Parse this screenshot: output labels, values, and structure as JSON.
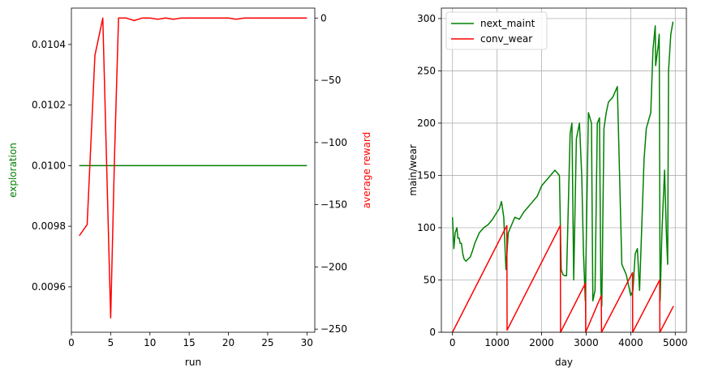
{
  "chart_data": [
    {
      "type": "line",
      "xlabel": "run",
      "ylabel_left": "exploration",
      "ylabel_right": "average reward",
      "xlim": [
        0,
        31
      ],
      "ylim_left": [
        0.00945,
        0.01052
      ],
      "ylim_right": [
        -252.5,
        8
      ],
      "grid": false,
      "legend": "none",
      "x_ticks": [
        0,
        5,
        10,
        15,
        20,
        25,
        30
      ],
      "y_left_ticks": [
        0.0096,
        0.0098,
        0.01,
        0.0102,
        0.0104
      ],
      "y_left_tick_labels": [
        "0.0096",
        "0.0098",
        "0.0100",
        "0.0102",
        "0.0104"
      ],
      "y_right_ticks": [
        -250,
        -200,
        -150,
        -100,
        -50,
        0
      ],
      "y_right_tick_labels": [
        "−250",
        "−200",
        "−150",
        "−100",
        "−50",
        "0"
      ],
      "series": [
        {
          "axis": "left",
          "color": "#008000",
          "x": [
            1,
            30
          ],
          "y": [
            0.01,
            0.01
          ]
        },
        {
          "axis": "right",
          "color": "#ff0000",
          "x": [
            1,
            2,
            3,
            4,
            5,
            5.5,
            6,
            7,
            8,
            9,
            10,
            11,
            12,
            13,
            14,
            15,
            16,
            17,
            18,
            19,
            20,
            21,
            22,
            23,
            24,
            25,
            26,
            27,
            28,
            29,
            30
          ],
          "y": [
            -175,
            -166,
            -30,
            0,
            -241,
            -110,
            0,
            0,
            -2,
            0,
            0,
            -1,
            0,
            -1,
            0,
            0,
            0,
            0,
            0,
            0,
            0,
            -1,
            0,
            0,
            0,
            0,
            0,
            0,
            0,
            0,
            0
          ]
        }
      ]
    },
    {
      "type": "line",
      "xlabel": "day",
      "ylabel": "main/wear",
      "xlim": [
        -250,
        5250
      ],
      "ylim": [
        0,
        310
      ],
      "grid": true,
      "legend": "top-left",
      "x_ticks": [
        0,
        1000,
        2000,
        3000,
        4000,
        5000
      ],
      "y_ticks": [
        0,
        50,
        100,
        150,
        200,
        250,
        300
      ],
      "series": [
        {
          "name": "next_maint",
          "color": "#008000",
          "x": [
            0,
            30,
            60,
            100,
            120,
            150,
            170,
            200,
            230,
            260,
            300,
            400,
            450,
            500,
            550,
            600,
            700,
            800,
            900,
            1000,
            1050,
            1100,
            1150,
            1200,
            1250,
            1300,
            1400,
            1500,
            1600,
            1700,
            1800,
            1900,
            2000,
            2100,
            2200,
            2300,
            2400,
            2440,
            2480,
            2520,
            2560,
            2640,
            2680,
            2720,
            2780,
            2850,
            2900,
            2940,
            2980,
            3050,
            3120,
            3150,
            3200,
            3250,
            3300,
            3330,
            3350,
            3400,
            3450,
            3500,
            3600,
            3700,
            3800,
            3900,
            4000,
            4050,
            4100,
            4150,
            4200,
            4300,
            4350,
            4450,
            4500,
            4550,
            4560,
            4620,
            4640,
            4660,
            4700,
            4760,
            4800,
            4830,
            4850,
            4900,
            4950
          ],
          "y": [
            110,
            80,
            95,
            100,
            90,
            90,
            85,
            85,
            75,
            70,
            68,
            72,
            78,
            85,
            90,
            95,
            100,
            103,
            108,
            115,
            118,
            125,
            110,
            60,
            95,
            100,
            110,
            108,
            115,
            120,
            125,
            130,
            140,
            145,
            150,
            155,
            150,
            60,
            55,
            54,
            54,
            190,
            200,
            50,
            185,
            200,
            150,
            75,
            30,
            210,
            200,
            30,
            40,
            200,
            205,
            40,
            25,
            195,
            210,
            220,
            225,
            235,
            65,
            55,
            35,
            40,
            75,
            80,
            40,
            165,
            195,
            210,
            270,
            293,
            255,
            275,
            285,
            30,
            95,
            155,
            95,
            65,
            250,
            285,
            297
          ]
        },
        {
          "name": "conv_wear",
          "color": "#ff0000",
          "x": [
            0,
            1220,
            1225,
            2420,
            2425,
            2985,
            2990,
            3340,
            3345,
            4040,
            4045,
            4650,
            4655,
            4960
          ],
          "y": [
            0,
            102,
            2,
            102,
            0,
            47,
            0,
            35,
            0,
            57,
            0,
            50,
            0,
            25
          ]
        }
      ]
    }
  ]
}
